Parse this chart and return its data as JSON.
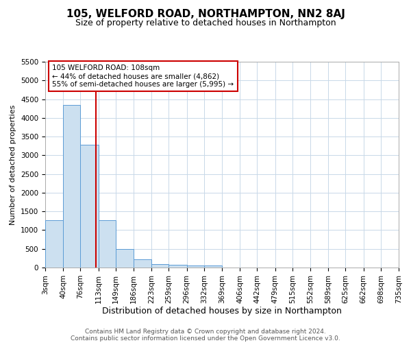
{
  "title": "105, WELFORD ROAD, NORTHAMPTON, NN2 8AJ",
  "subtitle": "Size of property relative to detached houses in Northampton",
  "xlabel": "Distribution of detached houses by size in Northampton",
  "ylabel": "Number of detached properties",
  "bin_edges": [
    3,
    40,
    76,
    113,
    149,
    186,
    223,
    259,
    296,
    332,
    369,
    406,
    442,
    479,
    515,
    552,
    589,
    625,
    662,
    698,
    735
  ],
  "bar_heights": [
    1260,
    4340,
    3280,
    1260,
    490,
    215,
    90,
    70,
    55,
    50,
    0,
    0,
    0,
    0,
    0,
    0,
    0,
    0,
    0,
    0
  ],
  "bar_color": "#cce0f0",
  "bar_edge_color": "#5b9bd5",
  "grid_color": "#c8d8e8",
  "background_color": "#ffffff",
  "property_size": 108,
  "red_line_color": "#cc0000",
  "annotation_line1": "105 WELFORD ROAD: 108sqm",
  "annotation_line2": "← 44% of detached houses are smaller (4,862)",
  "annotation_line3": "55% of semi-detached houses are larger (5,995) →",
  "annotation_box_color": "#ffffff",
  "annotation_box_edge_color": "#cc0000",
  "ylim": [
    0,
    5500
  ],
  "yticks": [
    0,
    500,
    1000,
    1500,
    2000,
    2500,
    3000,
    3500,
    4000,
    4500,
    5000,
    5500
  ],
  "footnote_line1": "Contains HM Land Registry data © Crown copyright and database right 2024.",
  "footnote_line2": "Contains public sector information licensed under the Open Government Licence v3.0.",
  "title_fontsize": 11,
  "subtitle_fontsize": 9,
  "xlabel_fontsize": 9,
  "ylabel_fontsize": 8,
  "tick_fontsize": 7.5,
  "annotation_fontsize": 7.5,
  "footnote_fontsize": 6.5
}
